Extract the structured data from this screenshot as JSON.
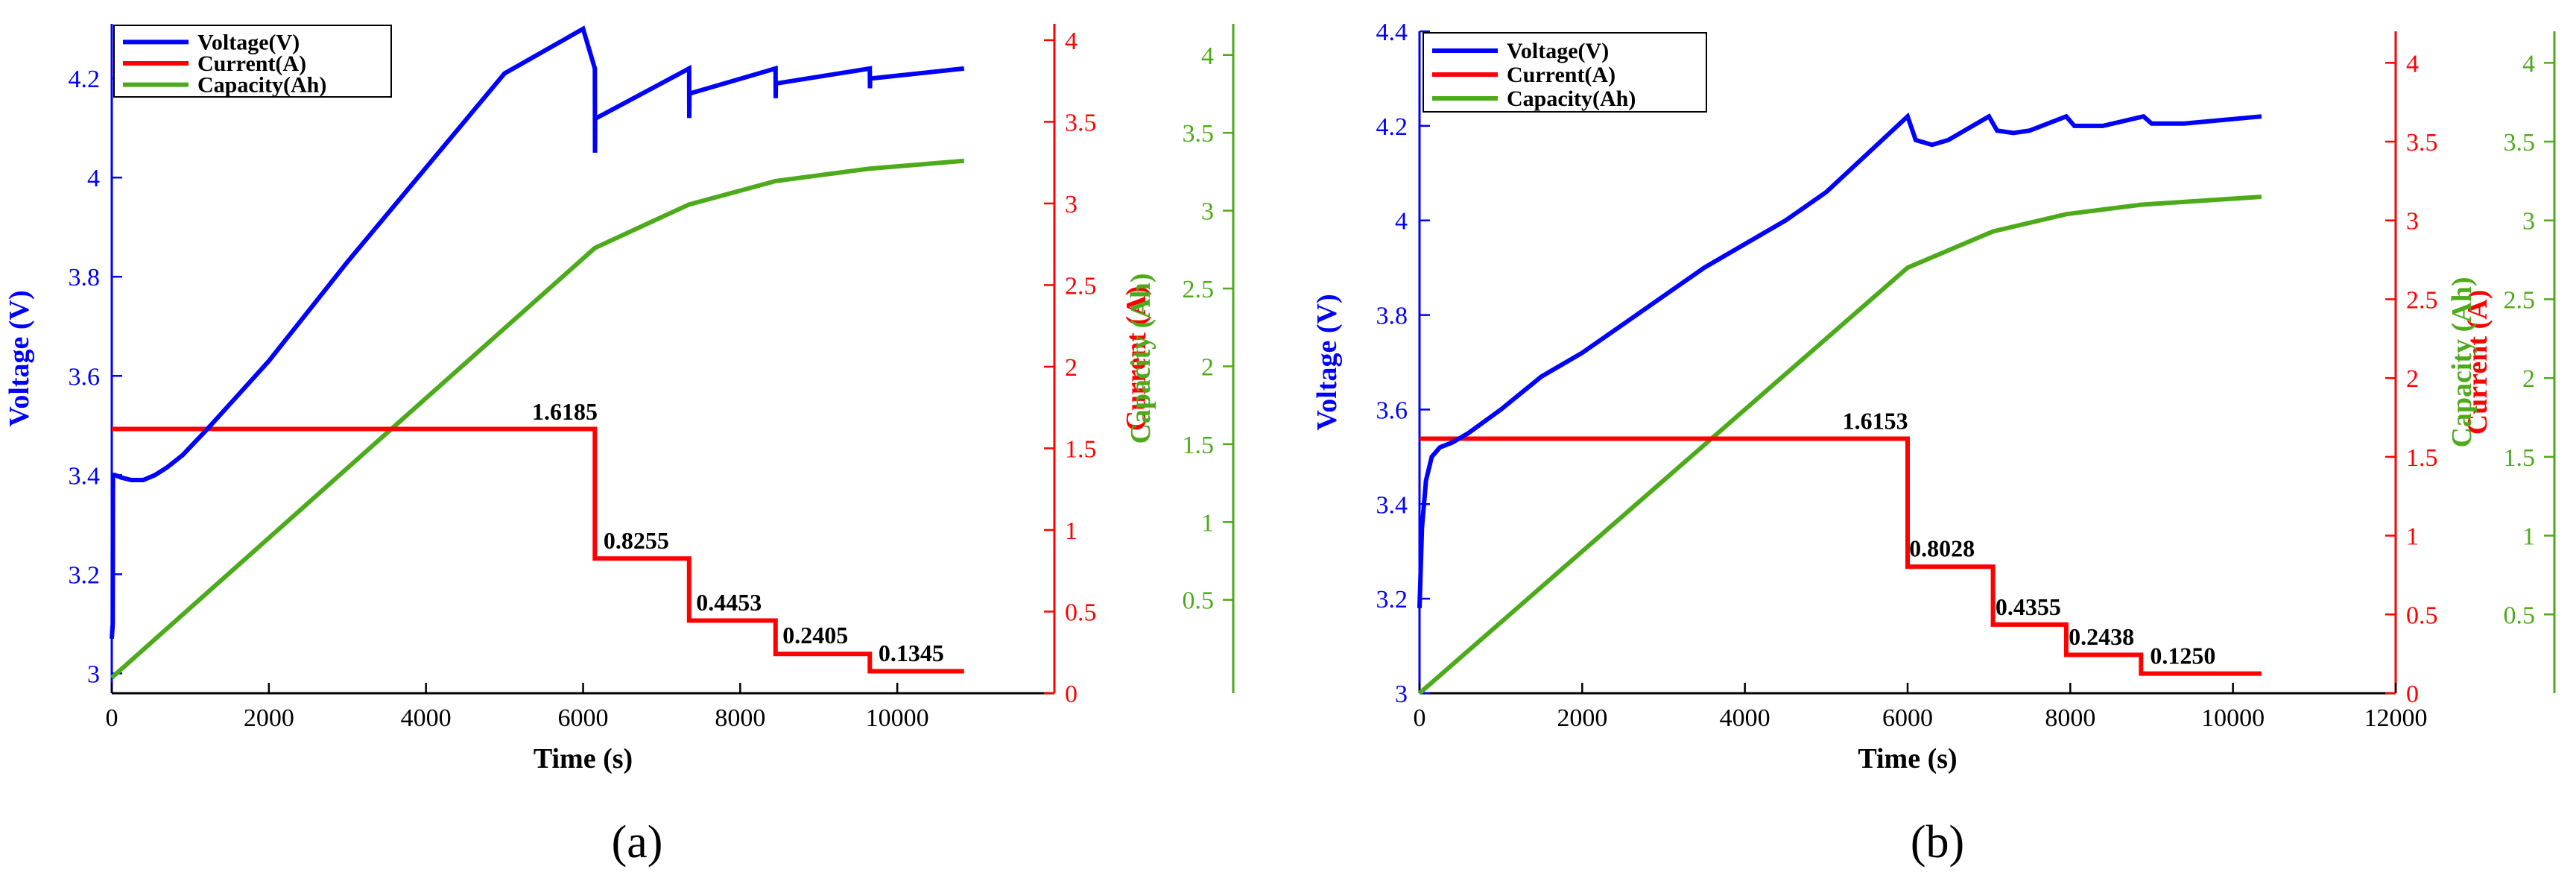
{
  "colors": {
    "voltage": "#0000ff",
    "current": "#ff0000",
    "capacity": "#4daa1a",
    "axis": "#000000"
  },
  "chart_data": [
    {
      "type": "line",
      "caption": "(a)",
      "xlabel": "Time (s)",
      "ylabel_left": "Voltage (V)",
      "ylabel_right1": "Current (A)",
      "ylabel_right2": "Capacity (Ah)",
      "xlim": [
        0,
        12000
      ],
      "xticks": [
        0,
        2000,
        4000,
        6000,
        8000,
        10000
      ],
      "xtick_labels": [
        "0",
        "2000",
        "4000",
        "6000",
        "8000",
        "10000"
      ],
      "ylim_voltage": [
        2.96,
        4.31
      ],
      "yticks_voltage": [
        3,
        3.2,
        3.4,
        3.6,
        3.8,
        4,
        4.2
      ],
      "ytick_labels_voltage": [
        "3",
        "3.2",
        "3.4",
        "3.6",
        "3.8",
        "4",
        "4.2"
      ],
      "ylim_current": [
        0,
        4.1
      ],
      "yticks_current": [
        0,
        0.5,
        1,
        1.5,
        2,
        2.5,
        3,
        3.5,
        4
      ],
      "ytick_labels_current": [
        "0",
        "0.5",
        "1",
        "1.5",
        "2",
        "2.5",
        "3",
        "3.5",
        "4"
      ],
      "ylim_capacity": [
        -0.1,
        4.2
      ],
      "yticks_capacity": [
        0.5,
        1,
        1.5,
        2,
        2.5,
        3,
        3.5,
        4
      ],
      "ytick_labels_capacity": [
        "0.5",
        "1",
        "1.5",
        "2",
        "2.5",
        "3",
        "3.5",
        "4"
      ],
      "legend": [
        "Voltage(V)",
        "Current(A)",
        "Capacity(Ah)"
      ],
      "series": [
        {
          "name": "Voltage(V)",
          "axis": "voltage",
          "x": [
            0,
            12,
            15,
            40,
            120,
            250,
            400,
            550,
            700,
            900,
            1200,
            1600,
            2000,
            3000,
            4000,
            5000,
            6000,
            6150,
            6152,
            6154,
            6170,
            7350,
            7352,
            7354,
            7370,
            8450,
            8452,
            8454,
            8470,
            9650,
            9652,
            9654,
            9670,
            10850
          ],
          "y": [
            3.07,
            3.1,
            3.4,
            3.4,
            3.395,
            3.39,
            3.39,
            3.4,
            3.415,
            3.44,
            3.49,
            3.56,
            3.63,
            3.83,
            4.02,
            4.21,
            4.3,
            4.22,
            4.05,
            4.12,
            4.12,
            4.22,
            4.12,
            4.17,
            4.17,
            4.22,
            4.16,
            4.19,
            4.19,
            4.22,
            4.18,
            4.2,
            4.2,
            4.22
          ]
        },
        {
          "name": "Current(A)",
          "axis": "current",
          "x": [
            0,
            6150,
            6150,
            7350,
            7350,
            8450,
            8450,
            9650,
            9650,
            10850
          ],
          "y": [
            1.6185,
            1.6185,
            0.8255,
            0.8255,
            0.4453,
            0.4453,
            0.2405,
            0.2405,
            0.1345,
            0.1345
          ]
        },
        {
          "name": "Capacity(Ah)",
          "axis": "capacity",
          "x": [
            0,
            6150,
            7350,
            8450,
            9650,
            10850
          ],
          "y": [
            0,
            2.76,
            3.04,
            3.19,
            3.27,
            3.32
          ]
        }
      ],
      "annotations": [
        {
          "text": "1.6185",
          "x": 5350,
          "y": 1.63
        },
        {
          "text": "0.8255",
          "x": 6260,
          "y": 0.84
        },
        {
          "text": "0.4453",
          "x": 7440,
          "y": 0.46
        },
        {
          "text": "0.2405",
          "x": 8540,
          "y": 0.26
        },
        {
          "text": "0.1345",
          "x": 9760,
          "y": 0.15
        }
      ]
    },
    {
      "type": "line",
      "caption": "(b)",
      "xlabel": "Time (s)",
      "ylabel_left": "Voltage (V)",
      "ylabel_right1": "Current (A)",
      "ylabel_right2": "Capacity (Ah)",
      "xlim": [
        0,
        12000
      ],
      "xticks": [
        0,
        2000,
        4000,
        6000,
        8000,
        10000,
        12000
      ],
      "xtick_labels": [
        "0",
        "2000",
        "4000",
        "6000",
        "8000",
        "10000",
        "12000"
      ],
      "ylim_voltage": [
        3.0,
        4.4
      ],
      "yticks_voltage": [
        3,
        3.2,
        3.4,
        3.6,
        3.8,
        4,
        4.2,
        4.4
      ],
      "ytick_labels_voltage": [
        "3",
        "3.2",
        "3.4",
        "3.6",
        "3.8",
        "4",
        "4.2",
        "4.4"
      ],
      "ylim_current": [
        0,
        4.2
      ],
      "yticks_current": [
        0,
        0.5,
        1,
        1.5,
        2,
        2.5,
        3,
        3.5,
        4
      ],
      "ytick_labels_current": [
        "0",
        "0.5",
        "1",
        "1.5",
        "2",
        "2.5",
        "3",
        "3.5",
        "4"
      ],
      "ylim_capacity": [
        0,
        4.2
      ],
      "yticks_capacity": [
        0.5,
        1,
        1.5,
        2,
        2.5,
        3,
        3.5,
        4
      ],
      "ytick_labels_capacity": [
        "0.5",
        "1",
        "1.5",
        "2",
        "2.5",
        "3",
        "3.5",
        "4"
      ],
      "legend": [
        "Voltage(V)",
        "Current(A)",
        "Capacity(Ah)"
      ],
      "series": [
        {
          "name": "Voltage(V)",
          "axis": "voltage",
          "x": [
            0,
            30,
            80,
            150,
            250,
            400,
            600,
            1000,
            1500,
            2000,
            2500,
            3000,
            3500,
            4000,
            4500,
            5000,
            5500,
            6000,
            6100,
            6300,
            6500,
            7000,
            7100,
            7300,
            7500,
            7950,
            8050,
            8200,
            8400,
            8900,
            9000,
            9200,
            9400,
            10350
          ],
          "y": [
            3.18,
            3.35,
            3.45,
            3.5,
            3.52,
            3.53,
            3.55,
            3.6,
            3.67,
            3.72,
            3.78,
            3.84,
            3.9,
            3.95,
            4.0,
            4.06,
            4.14,
            4.22,
            4.17,
            4.16,
            4.17,
            4.22,
            4.19,
            4.185,
            4.19,
            4.22,
            4.2,
            4.2,
            4.2,
            4.22,
            4.205,
            4.205,
            4.205,
            4.22
          ]
        },
        {
          "name": "Current(A)",
          "axis": "current",
          "x": [
            0,
            6000,
            6000,
            7050,
            7050,
            7950,
            7950,
            8870,
            8870,
            10350
          ],
          "y": [
            1.6153,
            1.6153,
            0.8028,
            0.8028,
            0.4355,
            0.4355,
            0.2438,
            0.2438,
            0.125,
            0.125
          ]
        },
        {
          "name": "Capacity(Ah)",
          "axis": "capacity",
          "x": [
            0,
            6000,
            7050,
            7950,
            8870,
            10350
          ],
          "y": [
            0,
            2.7,
            2.93,
            3.04,
            3.1,
            3.15
          ]
        }
      ],
      "annotations": [
        {
          "text": "1.6153",
          "x": 5200,
          "y": 1.63
        },
        {
          "text": "0.8028",
          "x": 6020,
          "y": 0.82
        },
        {
          "text": "0.4355",
          "x": 7080,
          "y": 0.45
        },
        {
          "text": "0.2438",
          "x": 7980,
          "y": 0.26
        },
        {
          "text": "0.1250",
          "x": 8980,
          "y": 0.14
        }
      ]
    }
  ]
}
